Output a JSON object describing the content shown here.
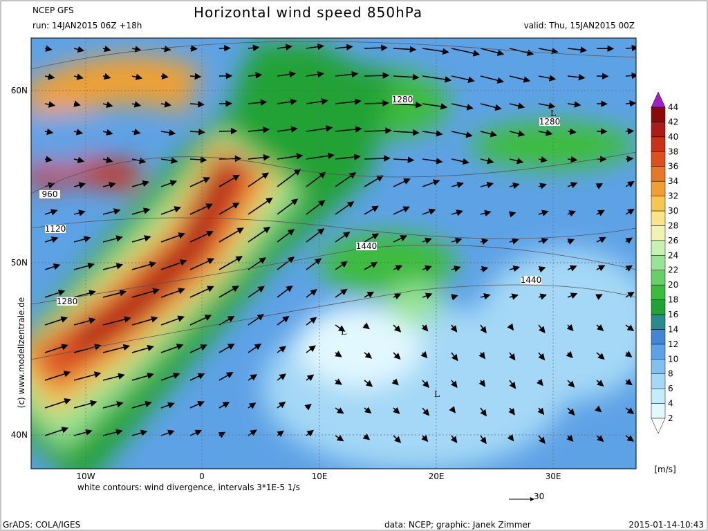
{
  "header": {
    "model": "NCEP GFS",
    "run": "run: 14JAN2015 06Z +18h",
    "title": "Horizontal wind speed 850hPa",
    "valid": "valid: Thu, 15JAN2015 00Z"
  },
  "map": {
    "lon_labels": [
      "10W",
      "0",
      "10E",
      "20E",
      "30E"
    ],
    "lat_labels": [
      "60N",
      "50N",
      "40N"
    ],
    "contour_labels": [
      "1280",
      "1280",
      "960",
      "1120",
      "1440",
      "1440",
      "1280"
    ],
    "lows": [
      "L",
      "L",
      "L"
    ],
    "note": "white contours: wind divergence, intervals 3*1E-5 1/s",
    "reference_vector": "30",
    "credit": "(c) www.modellzentrale.de"
  },
  "colorbar": {
    "unit": "[m/s]",
    "levels": [
      2,
      4,
      6,
      8,
      10,
      12,
      14,
      16,
      18,
      20,
      22,
      24,
      26,
      28,
      30,
      32,
      34,
      36,
      38,
      40,
      42,
      44
    ],
    "colors": [
      "#e2f8ff",
      "#c4ecfc",
      "#a4d8f6",
      "#82c0f0",
      "#5ea2e6",
      "#4286d8",
      "#2a8a8e",
      "#22a236",
      "#3cbc3c",
      "#66d066",
      "#98e496",
      "#c8f2b4",
      "#f2f2b2",
      "#fae48a",
      "#f6c652",
      "#f0a032",
      "#e67828",
      "#dc5020",
      "#c83218",
      "#aa1c14",
      "#8a0a0a"
    ]
  },
  "footer": {
    "software": "GrADS: COLA/IGES",
    "source": "data: NCEP; graphic: Janek Zimmer",
    "timestamp": "2015-01-14-10:43"
  }
}
